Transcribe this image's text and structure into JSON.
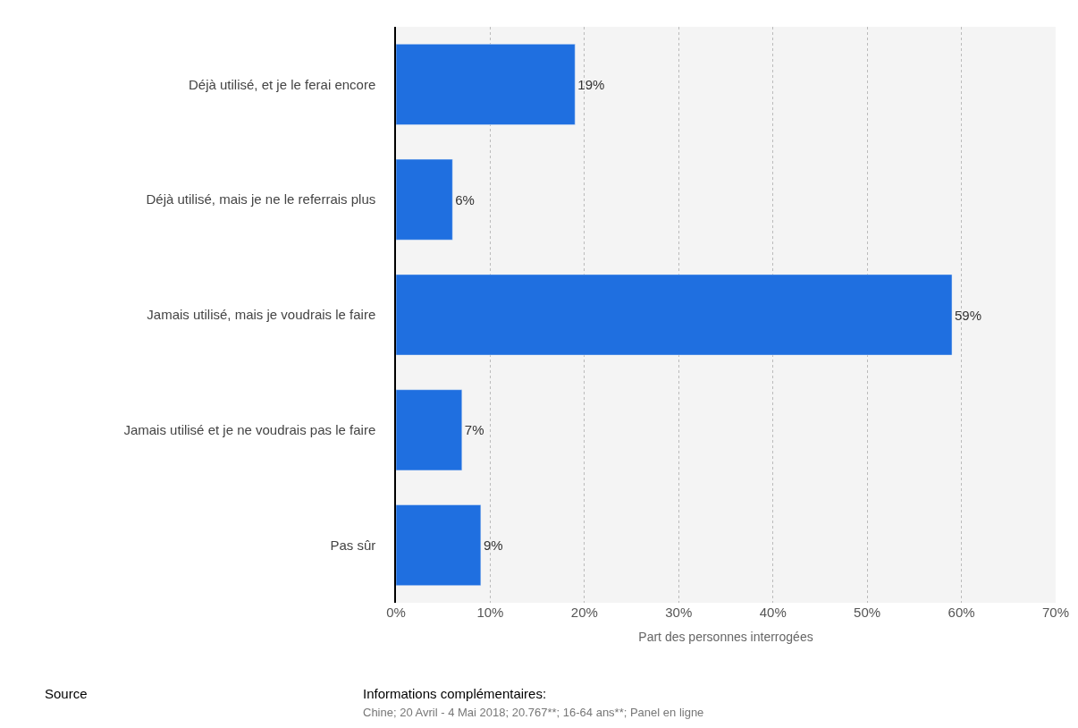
{
  "chart_data": {
    "type": "bar",
    "orientation": "horizontal",
    "xlabel": "Part des personnes interrogées",
    "categories": [
      "Déjà utilisé, et je le ferai encore",
      "Déjà utilisé, mais je ne le referrais plus",
      "Jamais utilisé, mais je voudrais le faire",
      "Jamais utilisé et je ne voudrais pas le faire",
      "Pas sûr"
    ],
    "values": [
      19,
      6,
      59,
      7,
      9
    ],
    "value_labels": [
      "19%",
      "6%",
      "59%",
      "7%",
      "9%"
    ],
    "color": "#1f6fe0",
    "xlim": [
      0,
      70
    ],
    "xticks": [
      {
        "value": 0,
        "label": "0%"
      },
      {
        "value": 10,
        "label": "10%"
      },
      {
        "value": 20,
        "label": "20%"
      },
      {
        "value": 30,
        "label": "30%"
      },
      {
        "value": 40,
        "label": "40%"
      },
      {
        "value": 50,
        "label": "50%"
      },
      {
        "value": 60,
        "label": "60%"
      },
      {
        "value": 70,
        "label": "70%"
      }
    ],
    "grid": "x",
    "legend": false,
    "annotations": [
      "Source",
      "Informations complémentaires:",
      "Chine; 20 Avril - 4 Mai 2018; 20.767**; 16-64 ans**; Panel en ligne"
    ]
  }
}
